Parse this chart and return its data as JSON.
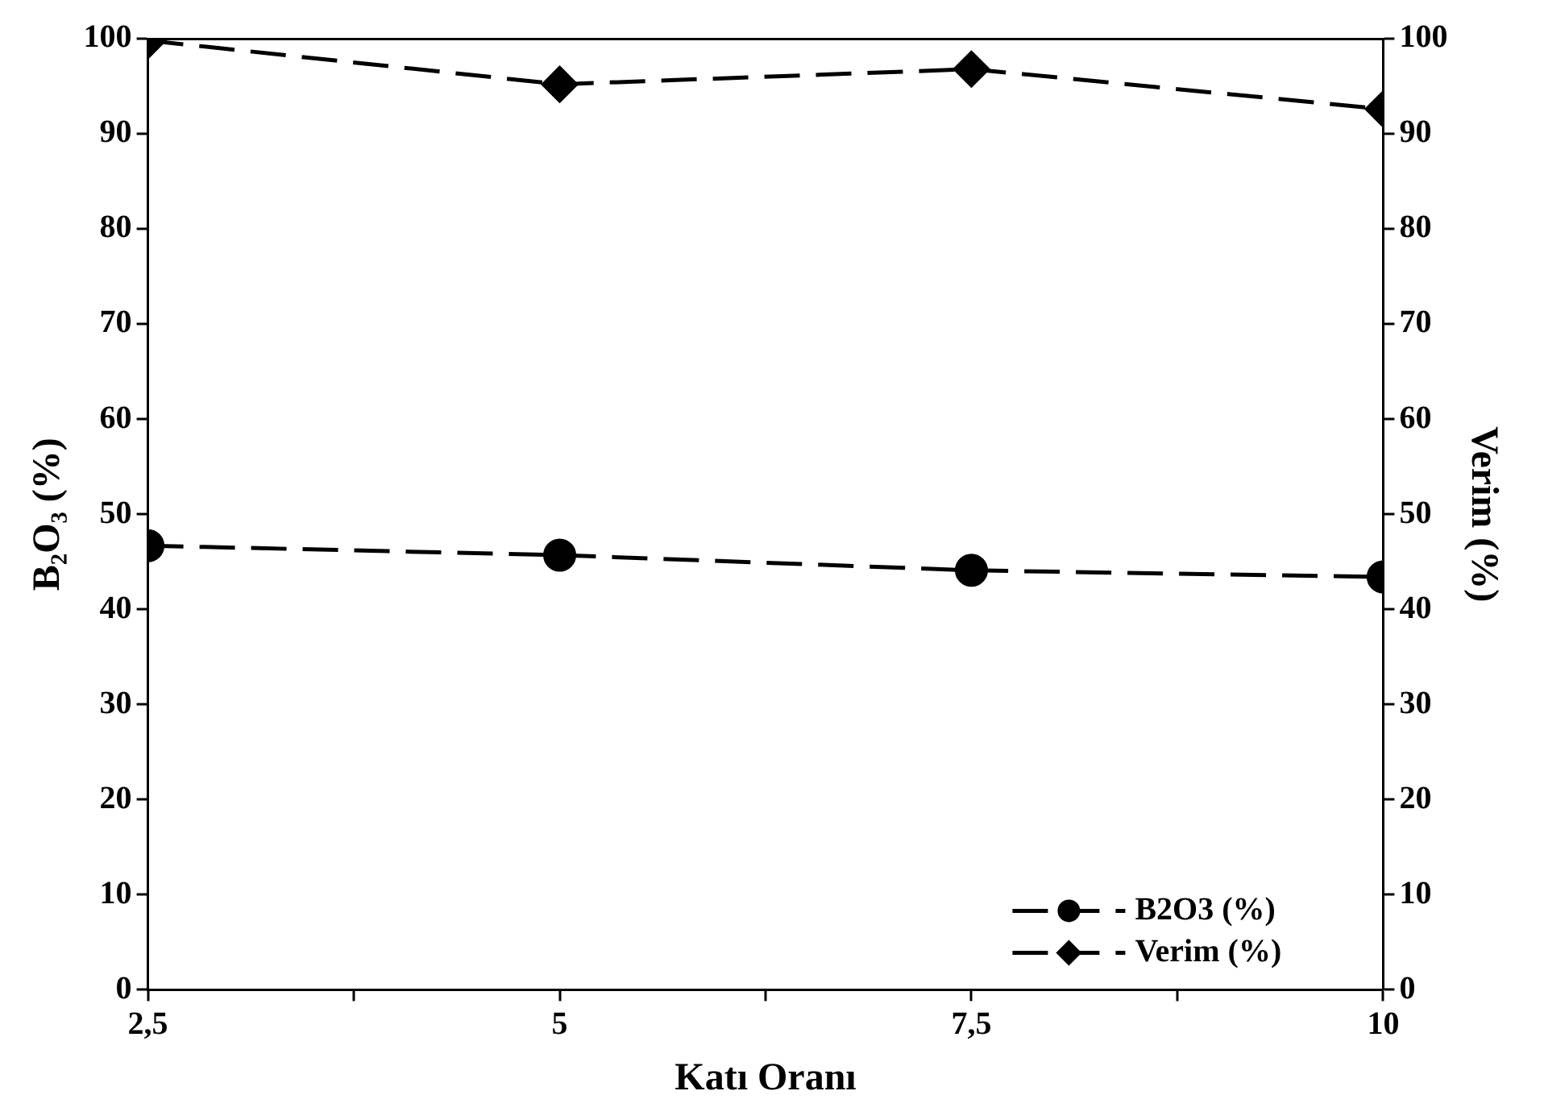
{
  "chart_data": {
    "type": "line",
    "xlabel": "Katı Oranı",
    "ylabel": "B₂O₃ (%)",
    "y2label": "Verim (%)",
    "x": [
      2.5,
      5,
      7.5,
      10
    ],
    "series": [
      {
        "name": "B2O3 (%)",
        "color": "#000000",
        "values": [
          46.7,
          45.7,
          44.1,
          43.4
        ],
        "marker": "circle",
        "line_style": "dashed"
      },
      {
        "name": "Verim (%)",
        "color": "#000000",
        "values": [
          99.8,
          95.2,
          96.8,
          92.6
        ],
        "marker": "diamond",
        "line_style": "dashed",
        "axis": "y2"
      }
    ],
    "xlim": [
      2.5,
      10
    ],
    "xticks": [
      {
        "value": 2.5,
        "label": "2,5"
      },
      {
        "value": 3.75,
        "label": null
      },
      {
        "value": 5,
        "label": "5"
      },
      {
        "value": 6.25,
        "label": null
      },
      {
        "value": 7.5,
        "label": "7,5"
      },
      {
        "value": 8.75,
        "label": null
      },
      {
        "value": 10,
        "label": "10"
      }
    ],
    "ylim": [
      0,
      100
    ],
    "yticks": [
      0,
      10,
      20,
      30,
      40,
      50,
      60,
      70,
      80,
      90,
      100
    ],
    "y2lim": [
      0,
      100
    ],
    "y2ticks": [
      0,
      10,
      20,
      30,
      40,
      50,
      60,
      70,
      80,
      90,
      100
    ],
    "grid": false,
    "legend": "bottom right"
  }
}
